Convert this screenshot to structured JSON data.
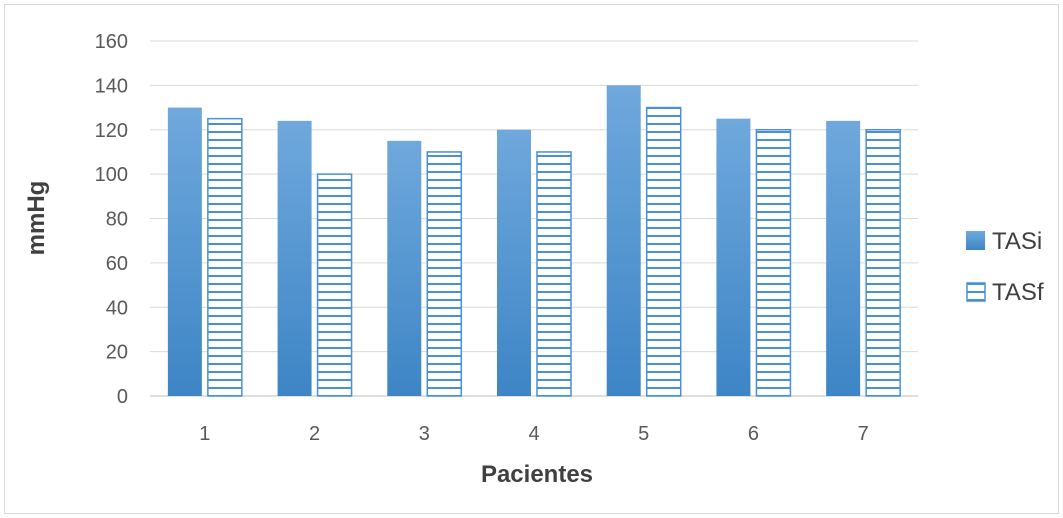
{
  "chart_data": {
    "type": "bar",
    "title": "",
    "xlabel": "Pacientes",
    "ylabel": "mmHg",
    "categories": [
      "1",
      "2",
      "3",
      "4",
      "5",
      "6",
      "7"
    ],
    "series": [
      {
        "name": "TASi",
        "values": [
          130,
          124,
          115,
          120,
          140,
          125,
          124
        ]
      },
      {
        "name": "TASf",
        "values": [
          125,
          100,
          110,
          110,
          130,
          120,
          120
        ]
      }
    ],
    "ylim": [
      0,
      160
    ],
    "yticks": [
      0,
      20,
      40,
      60,
      80,
      100,
      120,
      140,
      160
    ],
    "grid": true,
    "legend_position": "right",
    "colors": {
      "tasi_top": "#6fa8dc",
      "tasi_bottom": "#3d85c6",
      "tasf_stroke": "#4a90d9",
      "grid": "#d9d9d9",
      "axis": "#bfbfbf"
    }
  }
}
